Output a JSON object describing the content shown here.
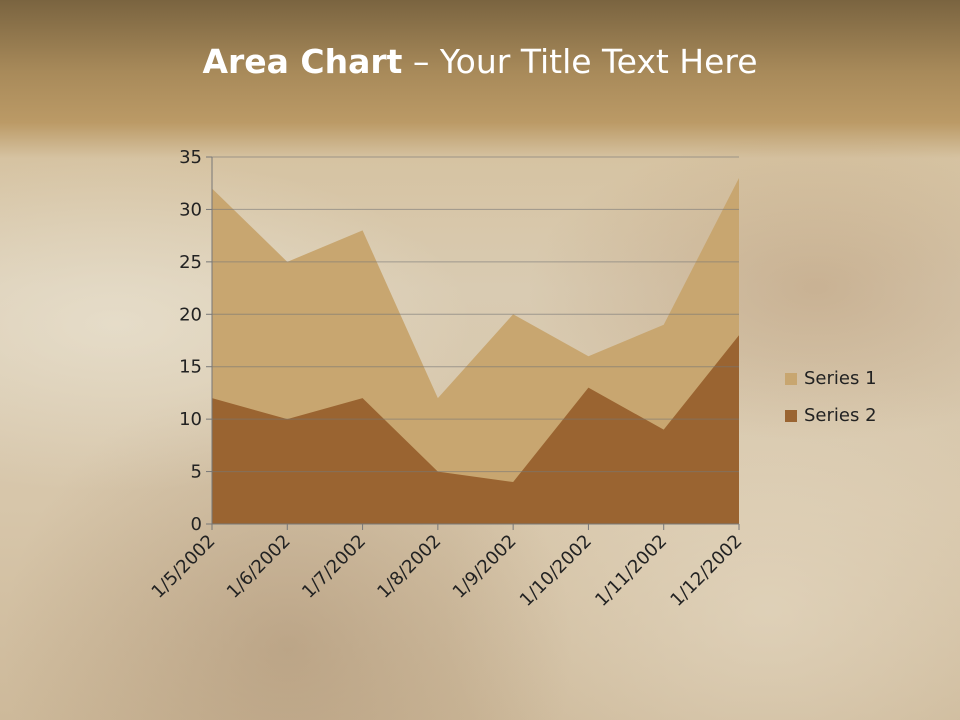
{
  "title": {
    "bold": "Area Chart",
    "rest": " – Your Title Text Here"
  },
  "chart_data": {
    "type": "area",
    "title": "",
    "categories": [
      "1/5/2002",
      "1/6/2002",
      "1/7/2002",
      "1/8/2002",
      "1/9/2002",
      "1/10/2002",
      "1/11/2002",
      "1/12/2002"
    ],
    "series": [
      {
        "name": "Series 1",
        "values": [
          32,
          25,
          28,
          12,
          20,
          16,
          19,
          33
        ],
        "color": "#c8a670"
      },
      {
        "name": "Series 2",
        "values": [
          12,
          10,
          12,
          5,
          4,
          13,
          9,
          18
        ],
        "color": "#9a6431"
      }
    ],
    "ylim": [
      0,
      35
    ],
    "yticks": [
      0,
      5,
      10,
      15,
      20,
      25,
      30,
      35
    ],
    "grid": true,
    "legend": "right"
  }
}
